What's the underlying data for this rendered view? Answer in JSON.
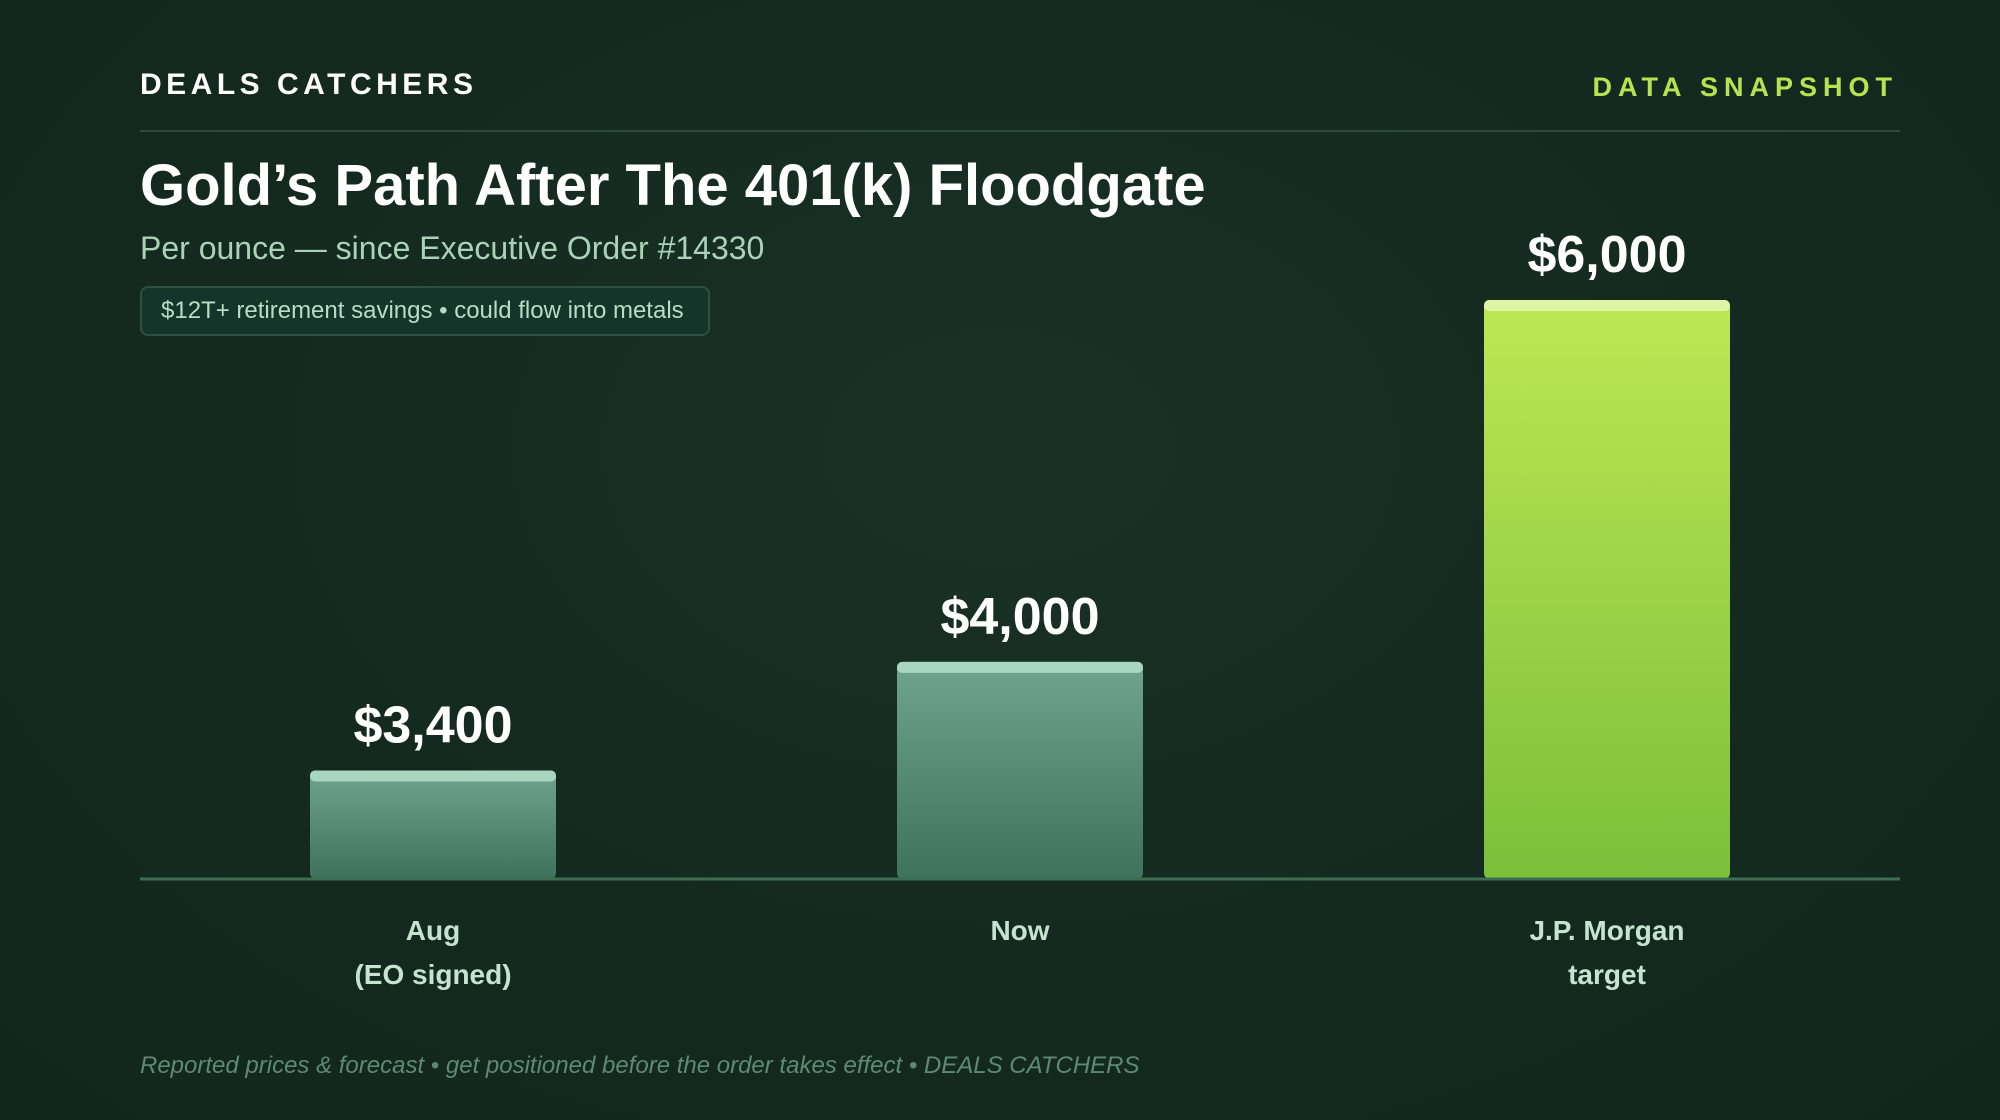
{
  "header": {
    "brand": "DEALS CATCHERS",
    "tag": "DATA SNAPSHOT"
  },
  "title": "Gold’s Path After The 401(k) Floodgate",
  "subtitle": "Per ounce — since Executive Order #14330",
  "pill": "$12T+ retirement savings • could flow into metals",
  "footer": "Reported prices & forecast • get positioned before the order takes effect • DEALS CATCHERS",
  "colors": {
    "accent": "#b6e34f",
    "muted_bar_top": "#6fa48e",
    "muted_bar_bottom": "#3e725a",
    "target_bar_top": "#bde854",
    "target_bar_bottom": "#7cbf3a",
    "baseline": "#3c6e52"
  },
  "chart_data": {
    "type": "bar",
    "categories": [
      [
        "Aug",
        "(EO signed)"
      ],
      [
        "Now"
      ],
      [
        "J.P. Morgan",
        "target"
      ]
    ],
    "values": [
      3400,
      4000,
      6000
    ],
    "value_labels": [
      "$3,400",
      "$4,000",
      "$6,000"
    ],
    "highlight_index": 2,
    "ylim": [
      2800,
      6000
    ],
    "grid": false,
    "xlabel": "",
    "ylabel": ""
  }
}
